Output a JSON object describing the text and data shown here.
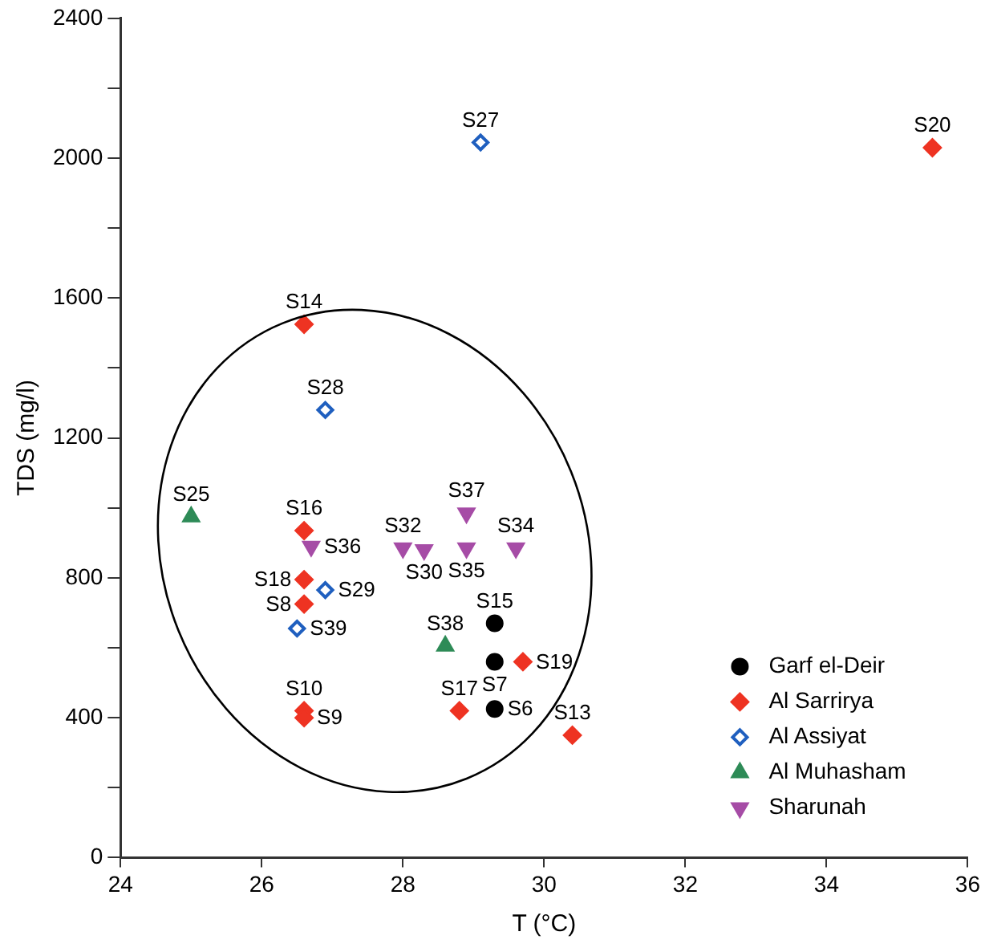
{
  "chart_data": {
    "type": "scatter",
    "xlabel": "T (°C)",
    "ylabel": "TDS (mg/l)",
    "xlim": [
      24,
      36
    ],
    "xticks": [
      24,
      26,
      28,
      30,
      32,
      34,
      36
    ],
    "ylim": [
      0,
      2400
    ],
    "yticks": [
      0,
      {
        "value": 200,
        "label": null
      },
      400,
      {
        "value": 600,
        "label": null
      },
      800,
      {
        "value": 1000,
        "label": null
      },
      1200,
      {
        "value": 1400,
        "label": null
      },
      1600,
      {
        "value": 1800,
        "label": null
      },
      2000,
      {
        "value": 2200,
        "label": null
      },
      2400
    ],
    "grid": false,
    "legend": "bottom right",
    "series": [
      {
        "name": "Garf el-Deir",
        "color": "#000000",
        "marker": "circle",
        "x": [
          29.3,
          29.3,
          29.3
        ],
        "values": [
          670,
          560,
          425
        ]
      },
      {
        "name": "Al Sarrirya",
        "color": "#ee3322",
        "marker": "diamond",
        "x": [
          35.5,
          26.6,
          26.6,
          26.6,
          26.6,
          26.6,
          26.6,
          28.8,
          29.7,
          30.4
        ],
        "values": [
          2030,
          1525,
          935,
          795,
          725,
          420,
          400,
          420,
          560,
          350
        ]
      },
      {
        "name": "Al Assiyat",
        "color": "#1f5fbf",
        "marker": "diamond_open",
        "x": [
          29.1,
          26.9,
          26.9,
          26.5
        ],
        "values": [
          2045,
          1280,
          765,
          655
        ]
      },
      {
        "name": "Al Muhasham",
        "color": "#2e8b57",
        "marker": "triangle",
        "x": [
          25.0,
          28.6
        ],
        "values": [
          975,
          605
        ]
      },
      {
        "name": "Sharunah",
        "color": "#a64ca6",
        "marker": "triangle_down",
        "x": [
          26.7,
          28.0,
          28.3,
          28.9,
          28.9,
          29.6
        ],
        "values": [
          890,
          885,
          880,
          985,
          885,
          885
        ]
      }
    ],
    "annotations": [
      {
        "text": "S15",
        "x": 29.3,
        "y": 670
      },
      {
        "text": "S7",
        "x": 29.3,
        "y": 560
      },
      {
        "text": "S6",
        "x": 29.3,
        "y": 425
      },
      {
        "text": "S20",
        "x": 35.5,
        "y": 2030
      },
      {
        "text": "S14",
        "x": 26.6,
        "y": 1525
      },
      {
        "text": "S16",
        "x": 26.6,
        "y": 935
      },
      {
        "text": "S18",
        "x": 26.6,
        "y": 795
      },
      {
        "text": "S8",
        "x": 26.6,
        "y": 725
      },
      {
        "text": "S10",
        "x": 26.6,
        "y": 420
      },
      {
        "text": "S9",
        "x": 26.6,
        "y": 400
      },
      {
        "text": "S17",
        "x": 28.8,
        "y": 420
      },
      {
        "text": "S19",
        "x": 29.7,
        "y": 560
      },
      {
        "text": "S13",
        "x": 30.4,
        "y": 350
      },
      {
        "text": "S27",
        "x": 29.1,
        "y": 2045
      },
      {
        "text": "S28",
        "x": 26.9,
        "y": 1280
      },
      {
        "text": "S29",
        "x": 26.9,
        "y": 765
      },
      {
        "text": "S39",
        "x": 26.5,
        "y": 655
      },
      {
        "text": "S25",
        "x": 25.0,
        "y": 975
      },
      {
        "text": "S38",
        "x": 28.6,
        "y": 605
      },
      {
        "text": "S36",
        "x": 26.7,
        "y": 890
      },
      {
        "text": "S32",
        "x": 28.0,
        "y": 885
      },
      {
        "text": "S30",
        "x": 28.3,
        "y": 880
      },
      {
        "text": "S37",
        "x": 28.9,
        "y": 985
      },
      {
        "text": "S35",
        "x": 28.9,
        "y": 885
      },
      {
        "text": "S34",
        "x": 29.6,
        "y": 885
      }
    ]
  }
}
